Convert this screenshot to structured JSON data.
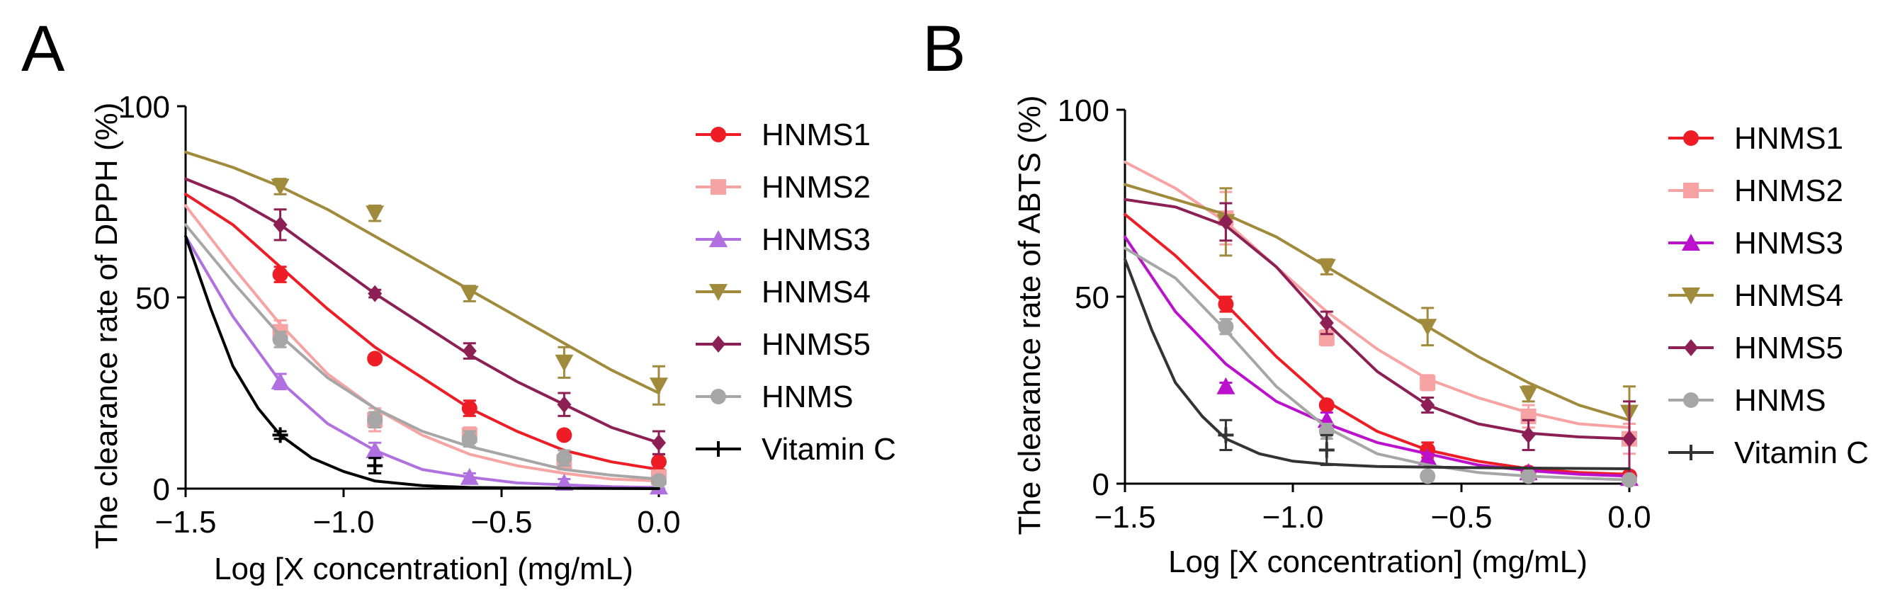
{
  "chart_data": [
    {
      "panel": "A",
      "type": "scatter",
      "xlabel": "Log [X concentration] (mg/mL)",
      "ylabel": "The clearance rate of DPPH (%)",
      "xlim": [
        -1.5,
        0.0
      ],
      "ylim": [
        0,
        100
      ],
      "xticks": [
        -1.5,
        -1.0,
        -0.5,
        0.0
      ],
      "xtick_labels": [
        "−1.5",
        "−1.0",
        "−0.5",
        "0.0"
      ],
      "yticks": [
        0,
        50,
        100
      ],
      "ytick_labels": [
        "0",
        "50",
        "100"
      ],
      "legend_position": "right",
      "x": [
        -1.2,
        -0.9,
        -0.6,
        -0.3,
        0.0
      ],
      "series": [
        {
          "name": "HNMS1",
          "marker": "circle",
          "color": "#ee1c24",
          "values": [
            56,
            34,
            21,
            14,
            7
          ],
          "errors": [
            2,
            1,
            2,
            1,
            2
          ],
          "curve": [
            [
              -1.5,
              77
            ],
            [
              -1.35,
              69
            ],
            [
              -1.2,
              58
            ],
            [
              -1.05,
              47
            ],
            [
              -0.9,
              37
            ],
            [
              -0.75,
              29
            ],
            [
              -0.6,
              21
            ],
            [
              -0.45,
              15
            ],
            [
              -0.3,
              10
            ],
            [
              -0.15,
              7
            ],
            [
              0.0,
              5
            ]
          ]
        },
        {
          "name": "HNMS2",
          "marker": "square",
          "color": "#f7a3a3",
          "values": [
            41,
            18,
            14,
            7,
            3
          ],
          "errors": [
            3,
            3,
            2,
            2,
            1
          ],
          "curve": [
            [
              -1.5,
              74
            ],
            [
              -1.35,
              58
            ],
            [
              -1.2,
              43
            ],
            [
              -1.05,
              30
            ],
            [
              -0.9,
              21
            ],
            [
              -0.75,
              14
            ],
            [
              -0.6,
              9
            ],
            [
              -0.45,
              6
            ],
            [
              -0.3,
              4
            ],
            [
              -0.15,
              2.5
            ],
            [
              0.0,
              2
            ]
          ]
        },
        {
          "name": "HNMS3",
          "marker": "triangle-up",
          "color": "#b070e0",
          "values": [
            28,
            10,
            3,
            1.5,
            0.5
          ],
          "errors": [
            2,
            2,
            1,
            1,
            0.5
          ],
          "curve": [
            [
              -1.5,
              66
            ],
            [
              -1.35,
              45
            ],
            [
              -1.2,
              28
            ],
            [
              -1.05,
              17
            ],
            [
              -0.9,
              10
            ],
            [
              -0.75,
              5
            ],
            [
              -0.6,
              3
            ],
            [
              -0.45,
              1.5
            ],
            [
              -0.3,
              1
            ],
            [
              -0.15,
              0.5
            ],
            [
              0.0,
              0.3
            ]
          ]
        },
        {
          "name": "HNMS4",
          "marker": "triangle-down",
          "color": "#a08a3c",
          "values": [
            79,
            72,
            51,
            33,
            27
          ],
          "errors": [
            2,
            2,
            2,
            4,
            5
          ],
          "curve": [
            [
              -1.5,
              88
            ],
            [
              -1.35,
              84
            ],
            [
              -1.2,
              79
            ],
            [
              -1.05,
              73
            ],
            [
              -0.9,
              66
            ],
            [
              -0.75,
              59
            ],
            [
              -0.6,
              52
            ],
            [
              -0.45,
              45
            ],
            [
              -0.3,
              38
            ],
            [
              -0.15,
              31
            ],
            [
              0.0,
              25
            ]
          ]
        },
        {
          "name": "HNMS5",
          "marker": "diamond",
          "color": "#8c1f54",
          "values": [
            69,
            51,
            36,
            22,
            12
          ],
          "errors": [
            4,
            1,
            2,
            3,
            3
          ],
          "curve": [
            [
              -1.5,
              81
            ],
            [
              -1.35,
              76
            ],
            [
              -1.2,
              69
            ],
            [
              -1.05,
              60
            ],
            [
              -0.9,
              51
            ],
            [
              -0.75,
              43
            ],
            [
              -0.6,
              35
            ],
            [
              -0.45,
              28
            ],
            [
              -0.3,
              22
            ],
            [
              -0.15,
              16
            ],
            [
              0.0,
              12
            ]
          ]
        },
        {
          "name": "HNMS",
          "marker": "circle",
          "color": "#a6a6a6",
          "values": [
            39,
            18,
            13,
            8,
            2
          ],
          "errors": [
            2,
            2,
            2,
            2,
            1
          ],
          "curve": [
            [
              -1.5,
              69
            ],
            [
              -1.35,
              54
            ],
            [
              -1.2,
              40
            ],
            [
              -1.05,
              29
            ],
            [
              -0.9,
              21
            ],
            [
              -0.75,
              15
            ],
            [
              -0.6,
              11
            ],
            [
              -0.45,
              8
            ],
            [
              -0.3,
              5
            ],
            [
              -0.15,
              3.5
            ],
            [
              0.0,
              2.5
            ]
          ]
        },
        {
          "name": "Vitamin C",
          "marker": "plus",
          "color": "#000000",
          "values": [
            14,
            6,
            null,
            null,
            null
          ],
          "errors": [
            1,
            2,
            null,
            null,
            null
          ],
          "curve": [
            [
              -1.5,
              66
            ],
            [
              -1.42,
              47
            ],
            [
              -1.35,
              32
            ],
            [
              -1.27,
              21
            ],
            [
              -1.2,
              14
            ],
            [
              -1.1,
              8
            ],
            [
              -1.0,
              4.5
            ],
            [
              -0.9,
              2
            ],
            [
              -0.75,
              0.8
            ],
            [
              -0.6,
              0.3
            ],
            [
              -0.3,
              0.1
            ],
            [
              0.0,
              0
            ]
          ]
        }
      ]
    },
    {
      "panel": "B",
      "type": "scatter",
      "xlabel": "Log [X concentration] (mg/mL)",
      "ylabel": "The clearance rate of ABTS (%)",
      "xlim": [
        -1.5,
        0.0
      ],
      "ylim": [
        0,
        100
      ],
      "xticks": [
        -1.5,
        -1.0,
        -0.5,
        0.0
      ],
      "xtick_labels": [
        "−1.5",
        "−1.0",
        "−0.5",
        "0.0"
      ],
      "yticks": [
        0,
        50,
        100
      ],
      "ytick_labels": [
        "0",
        "50",
        "100"
      ],
      "legend_position": "right",
      "x": [
        -1.2,
        -0.9,
        -0.6,
        -0.3,
        0.0
      ],
      "series": [
        {
          "name": "HNMS1",
          "marker": "circle",
          "color": "#ee1c24",
          "values": [
            48,
            21,
            9,
            3,
            2
          ],
          "errors": [
            2,
            1,
            2,
            1,
            1
          ],
          "curve": [
            [
              -1.5,
              72
            ],
            [
              -1.35,
              61
            ],
            [
              -1.2,
              48
            ],
            [
              -1.05,
              34
            ],
            [
              -0.9,
              22
            ],
            [
              -0.75,
              14
            ],
            [
              -0.6,
              9
            ],
            [
              -0.45,
              6
            ],
            [
              -0.3,
              4
            ],
            [
              -0.15,
              3
            ],
            [
              0.0,
              2.5
            ]
          ]
        },
        {
          "name": "HNMS2",
          "marker": "square",
          "color": "#f7a3a3",
          "values": [
            71,
            39,
            27,
            18,
            12
          ],
          "errors": [
            7,
            2,
            2,
            3,
            4
          ],
          "curve": [
            [
              -1.5,
              86
            ],
            [
              -1.35,
              79
            ],
            [
              -1.2,
              70
            ],
            [
              -1.05,
              58
            ],
            [
              -0.9,
              46
            ],
            [
              -0.75,
              36
            ],
            [
              -0.6,
              28
            ],
            [
              -0.45,
              23
            ],
            [
              -0.3,
              19
            ],
            [
              -0.15,
              16
            ],
            [
              0.0,
              15
            ]
          ]
        },
        {
          "name": "HNMS3",
          "marker": "triangle-up",
          "color": "#bb11cc",
          "values": [
            26,
            17,
            7,
            3,
            1.5
          ],
          "errors": [
            1,
            2,
            1,
            1,
            0.5
          ],
          "curve": [
            [
              -1.5,
              66
            ],
            [
              -1.35,
              46
            ],
            [
              -1.2,
              32
            ],
            [
              -1.05,
              22
            ],
            [
              -0.9,
              16
            ],
            [
              -0.75,
              11
            ],
            [
              -0.6,
              8
            ],
            [
              -0.45,
              5
            ],
            [
              -0.3,
              3.5
            ],
            [
              -0.15,
              2.5
            ],
            [
              0.0,
              2
            ]
          ]
        },
        {
          "name": "HNMS4",
          "marker": "triangle-down",
          "color": "#a08a3c",
          "values": [
            70,
            58,
            42,
            24,
            19
          ],
          "errors": [
            9,
            2,
            5,
            2,
            7
          ],
          "curve": [
            [
              -1.5,
              80
            ],
            [
              -1.35,
              76
            ],
            [
              -1.2,
              72
            ],
            [
              -1.05,
              66
            ],
            [
              -0.9,
              58
            ],
            [
              -0.75,
              50
            ],
            [
              -0.6,
              42
            ],
            [
              -0.45,
              34
            ],
            [
              -0.3,
              27
            ],
            [
              -0.15,
              21
            ],
            [
              0.0,
              17
            ]
          ]
        },
        {
          "name": "HNMS5",
          "marker": "diamond",
          "color": "#8c1f54",
          "values": [
            70,
            43,
            21,
            13,
            12
          ],
          "errors": [
            5,
            3,
            2,
            4,
            10
          ],
          "curve": [
            [
              -1.5,
              76
            ],
            [
              -1.35,
              74
            ],
            [
              -1.2,
              69
            ],
            [
              -1.05,
              58
            ],
            [
              -0.9,
              43
            ],
            [
              -0.75,
              30
            ],
            [
              -0.6,
              21
            ],
            [
              -0.45,
              16
            ],
            [
              -0.3,
              13.5
            ],
            [
              -0.15,
              12.5
            ],
            [
              0.0,
              12
            ]
          ]
        },
        {
          "name": "HNMS",
          "marker": "circle",
          "color": "#a6a6a6",
          "values": [
            42,
            14,
            2,
            2,
            1
          ],
          "errors": [
            2,
            2,
            1,
            1,
            0.5
          ],
          "curve": [
            [
              -1.5,
              63
            ],
            [
              -1.35,
              55
            ],
            [
              -1.2,
              41
            ],
            [
              -1.05,
              26
            ],
            [
              -0.9,
              15
            ],
            [
              -0.75,
              8
            ],
            [
              -0.6,
              5
            ],
            [
              -0.45,
              3
            ],
            [
              -0.3,
              2
            ],
            [
              -0.15,
              1.5
            ],
            [
              0.0,
              1
            ]
          ]
        },
        {
          "name": "Vitamin C",
          "marker": "plus",
          "color": "#333333",
          "values": [
            13,
            9,
            null,
            null,
            null
          ],
          "errors": [
            4,
            4,
            null,
            null,
            null
          ],
          "curve": [
            [
              -1.5,
              60
            ],
            [
              -1.42,
              41
            ],
            [
              -1.35,
              27
            ],
            [
              -1.27,
              18
            ],
            [
              -1.2,
              12
            ],
            [
              -1.1,
              8
            ],
            [
              -1.0,
              6
            ],
            [
              -0.9,
              5.2
            ],
            [
              -0.75,
              4.6
            ],
            [
              -0.5,
              4.3
            ],
            [
              -0.2,
              4.1
            ],
            [
              0.0,
              4
            ]
          ]
        }
      ]
    }
  ]
}
